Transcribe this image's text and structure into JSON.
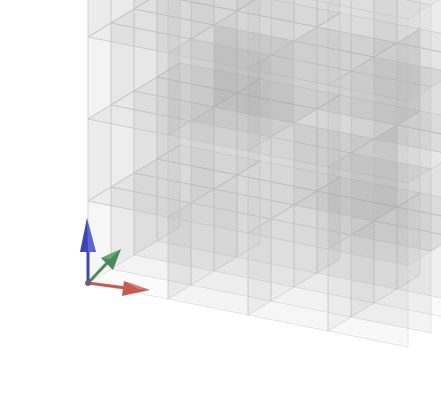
{
  "viewport": {
    "background": "#ffffff",
    "object": "transparent-voxel-grid",
    "voxel_fill": "#9a9a9a",
    "voxel_edge": "#c8c8c8"
  },
  "axes_gizmo": {
    "x_axis": {
      "icon": "red-arrow-icon",
      "color": "#c85a50"
    },
    "y_axis": {
      "icon": "green-arrow-icon",
      "color": "#4a8a5a"
    },
    "z_axis": {
      "icon": "blue-arrow-icon",
      "color": "#3a46b8"
    }
  }
}
